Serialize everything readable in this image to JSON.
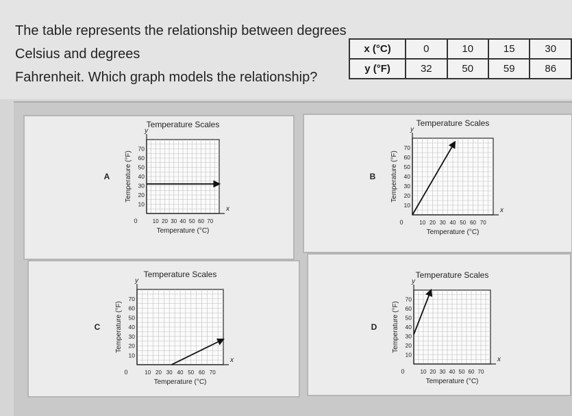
{
  "question": {
    "line1": "The table represents the relationship between degrees Celsius and degrees",
    "line2": "Fahrenheit. Which graph models the relationship?"
  },
  "table": {
    "x_header": "x (°C)",
    "y_header": "y (°F)",
    "x_values": [
      "0",
      "10",
      "15",
      "30"
    ],
    "y_values": [
      "32",
      "50",
      "59",
      "86"
    ]
  },
  "chart_data": [
    {
      "type": "line",
      "option": "A",
      "title": "Temperature Scales",
      "xlabel": "Temperature (°C)",
      "ylabel": "Temperature (°F)",
      "x_axis_var": "x",
      "y_axis_var": "y",
      "xticks": [
        "10",
        "20",
        "30",
        "40",
        "50",
        "60",
        "70"
      ],
      "yticks": [
        "10",
        "20",
        "30",
        "40",
        "50",
        "60",
        "70"
      ],
      "origin_label": "0",
      "xlim": [
        0,
        80
      ],
      "ylim": [
        0,
        80
      ],
      "series": [
        {
          "x": [
            0,
            80
          ],
          "y": [
            32,
            32
          ]
        }
      ],
      "grid": true,
      "end_arrow": true
    },
    {
      "type": "line",
      "option": "B",
      "title": "Temperature Scales",
      "xlabel": "Temperature (°C)",
      "ylabel": "Temperature (°F)",
      "x_axis_var": "x",
      "y_axis_var": "y",
      "xticks": [
        "10",
        "20",
        "30",
        "40",
        "50",
        "60",
        "70"
      ],
      "yticks": [
        "10",
        "20",
        "30",
        "40",
        "50",
        "60",
        "70"
      ],
      "origin_label": "0",
      "xlim": [
        0,
        80
      ],
      "ylim": [
        0,
        80
      ],
      "series": [
        {
          "x": [
            0,
            42
          ],
          "y": [
            0,
            76
          ]
        }
      ],
      "grid": true,
      "end_arrow": true
    },
    {
      "type": "line",
      "option": "C",
      "title": "Temperature Scales",
      "xlabel": "Temperature (°C)",
      "ylabel": "Temperature (°F)",
      "x_axis_var": "x",
      "y_axis_var": "y",
      "xticks": [
        "10",
        "20",
        "30",
        "40",
        "50",
        "60",
        "70"
      ],
      "yticks": [
        "10",
        "20",
        "30",
        "40",
        "50",
        "60",
        "70"
      ],
      "origin_label": "0",
      "xlim": [
        0,
        80
      ],
      "ylim": [
        0,
        80
      ],
      "series": [
        {
          "x": [
            32,
            80
          ],
          "y": [
            0,
            27
          ]
        }
      ],
      "grid": true,
      "end_arrow": true
    },
    {
      "type": "line",
      "option": "D",
      "title": "Temperature Scales",
      "xlabel": "Temperature (°C)",
      "ylabel": "Temperature (°F)",
      "x_axis_var": "x",
      "y_axis_var": "y",
      "xticks": [
        "10",
        "20",
        "30",
        "40",
        "50",
        "60",
        "70"
      ],
      "yticks": [
        "10",
        "20",
        "30",
        "40",
        "50",
        "60",
        "70"
      ],
      "origin_label": "0",
      "xlim": [
        0,
        80
      ],
      "ylim": [
        0,
        80
      ],
      "series": [
        {
          "x": [
            0,
            18
          ],
          "y": [
            32,
            80
          ]
        }
      ],
      "grid": true,
      "end_arrow": true
    }
  ]
}
